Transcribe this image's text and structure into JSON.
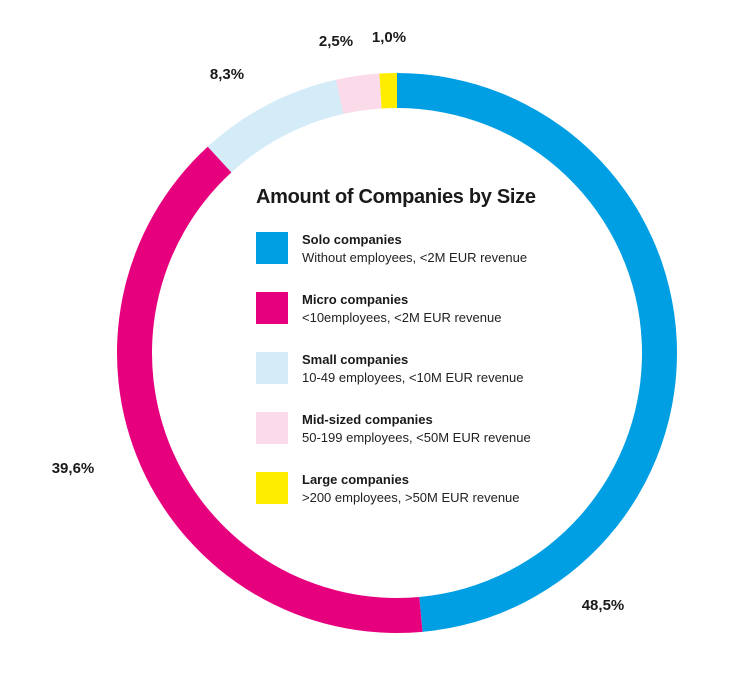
{
  "chart_data": {
    "type": "pie",
    "variant": "donut",
    "title": "Amount of Companies by Size",
    "categories": [
      "Solo companies",
      "Micro companies",
      "Small companies",
      "Mid-sized companies",
      "Large companies"
    ],
    "descriptions": [
      "Without employees, <2M EUR revenue",
      "<10employees, <2M EUR revenue",
      "10-49 employees, <10M EUR revenue",
      "50-199 employees, <50M EUR revenue",
      ">200 employees, >50M EUR revenue"
    ],
    "values": [
      48.5,
      39.6,
      8.3,
      2.5,
      1.0
    ],
    "value_labels": [
      "48,5%",
      "39,6%",
      "8,3%",
      "2,5%",
      "1,0%"
    ],
    "colors": [
      "#009fe3",
      "#e6007e",
      "#d4ebf8",
      "#fbdbe9",
      "#ffed00"
    ],
    "legend_position": "center"
  }
}
